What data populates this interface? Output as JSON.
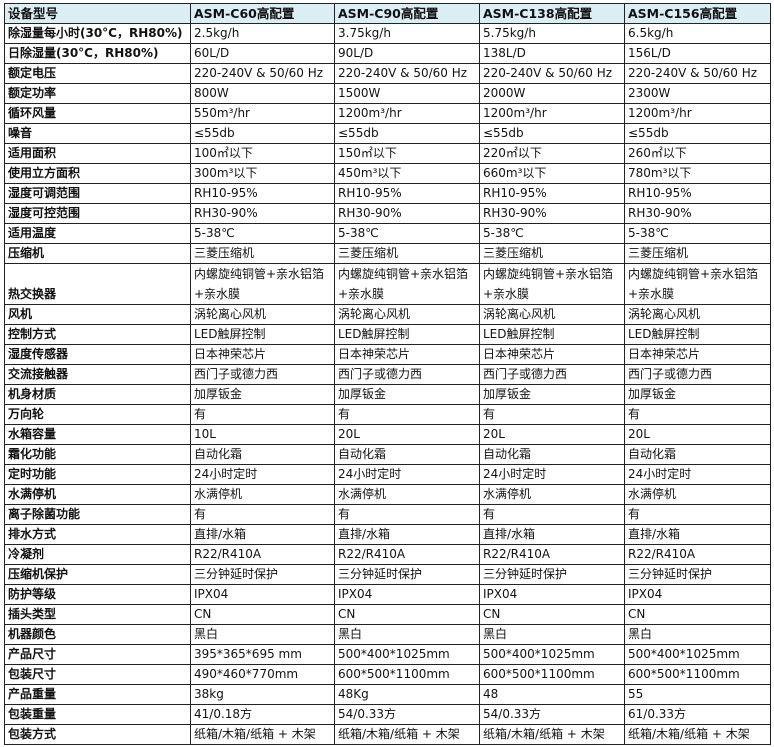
{
  "header": {
    "label": "设备型号",
    "models": [
      "ASM-C60高配置",
      "ASM-C90高配置",
      "ASM-C138高配置",
      "ASM-C156高配置"
    ]
  },
  "rows": [
    {
      "label": "除湿量每小时(30°C，RH80%)",
      "values": [
        "2.5kg/h",
        "3.75kg/h",
        "5.75kg/h",
        "6.5kg/h"
      ]
    },
    {
      "label": "日除湿量(30°C，RH80%)",
      "values": [
        "60L/D",
        "90L/D",
        "138L/D",
        "156L/D"
      ]
    },
    {
      "label": "额定电压",
      "values": [
        "220-240V & 50/60 Hz",
        "220-240V & 50/60 Hz",
        "220-240V & 50/60 Hz",
        "220-240V & 50/60 Hz"
      ]
    },
    {
      "label": "额定功率",
      "values": [
        "800W",
        "1500W",
        "2000W",
        "2300W"
      ]
    },
    {
      "label": "循环风量",
      "values": [
        "550m³/hr",
        "1200m³/hr",
        "1200m³/hr",
        "1200m³/hr"
      ]
    },
    {
      "label": "噪音",
      "values": [
        "≤55db",
        "≤55db",
        "≤55db",
        "≤55db"
      ]
    },
    {
      "label": "适用面积",
      "values": [
        "100㎡以下",
        "150㎡以下",
        "220㎡以下",
        "260㎡以下"
      ]
    },
    {
      "label": "使用立方面积",
      "values": [
        "300m³以下",
        "450m³以下",
        "660m³以下",
        "780m³以下"
      ]
    },
    {
      "label": "湿度可调范围",
      "values": [
        "RH10-95%",
        "RH10-95%",
        "RH10-95%",
        "RH10-95%"
      ]
    },
    {
      "label": "湿度可控范围",
      "values": [
        "RH30-90%",
        "RH30-90%",
        "RH30-90%",
        "RH30-90%"
      ]
    },
    {
      "label": "适用温度",
      "values": [
        "5-38℃",
        "5-38℃",
        "5-38℃",
        "5-38℃"
      ]
    },
    {
      "label": "压缩机",
      "values": [
        "三菱压缩机",
        "三菱压缩机",
        "三菱压缩机",
        "三菱压缩机"
      ]
    },
    {
      "label": "热交换器",
      "tall": true,
      "values": [
        "内螺旋纯铜管+亲水铝箔+亲水膜",
        "内螺旋纯铜管+亲水铝箔+亲水膜",
        "内螺旋纯铜管+亲水铝箔+亲水膜",
        "内螺旋纯铜管+亲水铝箔+亲水膜"
      ]
    },
    {
      "label": "风机",
      "values": [
        "涡轮离心风机",
        "涡轮离心风机",
        "涡轮离心风机",
        "涡轮离心风机"
      ]
    },
    {
      "label": "控制方式",
      "values": [
        "LED触屏控制",
        "LED触屏控制",
        "LED触屏控制",
        "LED触屏控制"
      ]
    },
    {
      "label": "湿度传感器",
      "values": [
        "日本神荣芯片",
        "日本神荣芯片",
        "日本神荣芯片",
        "日本神荣芯片"
      ]
    },
    {
      "label": "交流接触器",
      "values": [
        "西门子或德力西",
        "西门子或德力西",
        "西门子或德力西",
        "西门子或德力西"
      ]
    },
    {
      "label": "机身材质",
      "values": [
        "加厚钣金",
        "加厚钣金",
        "加厚钣金",
        "加厚钣金"
      ]
    },
    {
      "label": "万向轮",
      "values": [
        "有",
        "有",
        "有",
        "有"
      ]
    },
    {
      "label": "水箱容量",
      "values": [
        "10L",
        "20L",
        "20L",
        "20L"
      ]
    },
    {
      "label": "霜化功能",
      "values": [
        "自动化霜",
        "自动化霜",
        "自动化霜",
        "自动化霜"
      ]
    },
    {
      "label": "定时功能",
      "values": [
        "24小时定时",
        "24小时定时",
        "24小时定时",
        "24小时定时"
      ]
    },
    {
      "label": "水满停机",
      "values": [
        "水满停机",
        "水满停机",
        "水满停机",
        "水满停机"
      ]
    },
    {
      "label": "离子除菌功能",
      "values": [
        "有",
        "有",
        "有",
        "有"
      ]
    },
    {
      "label": "排水方式",
      "values": [
        "直排/水箱",
        "直排/水箱",
        "直排/水箱",
        "直排/水箱"
      ]
    },
    {
      "label": "冷凝剂",
      "values": [
        "R22/R410A",
        "R22/R410A",
        "R22/R410A",
        "R22/R410A"
      ]
    },
    {
      "label": "压缩机保护",
      "values": [
        "三分钟延时保护",
        "三分钟延时保护",
        "三分钟延时保护",
        "三分钟延时保护"
      ]
    },
    {
      "label": "防护等级",
      "values": [
        "IPX04",
        "IPX04",
        "IPX04",
        "IPX04"
      ]
    },
    {
      "label": "插头类型",
      "values": [
        "CN",
        "CN",
        "CN",
        "CN"
      ]
    },
    {
      "label": "机器颜色",
      "values": [
        "黑白",
        "黑白",
        "黑白",
        "黑白"
      ]
    },
    {
      "label": "产品尺寸",
      "values": [
        "395*365*695 mm",
        "500*400*1025mm",
        "500*400*1025mm",
        "500*400*1025mm"
      ]
    },
    {
      "label": "包装尺寸",
      "values": [
        "490*460*770mm",
        "600*500*1100mm",
        "600*500*1100mm",
        "600*500*1100mm"
      ]
    },
    {
      "label": "产品重量",
      "values": [
        "38kg",
        "48Kg",
        "48",
        "55"
      ]
    },
    {
      "label": "包装重量",
      "values": [
        "41/0.18方",
        "54/0.33方",
        "54/0.33方",
        "61/0.33方"
      ]
    },
    {
      "label": "包装方式",
      "values": [
        "纸箱/木箱/纸箱 + 木架",
        "纸箱/木箱/纸箱 + 木架",
        "纸箱/木箱/纸箱 + 木架",
        "纸箱/木箱/纸箱 + 木架"
      ]
    }
  ],
  "colors": {
    "header_bg": "#dbeef4",
    "border": "#222222"
  }
}
